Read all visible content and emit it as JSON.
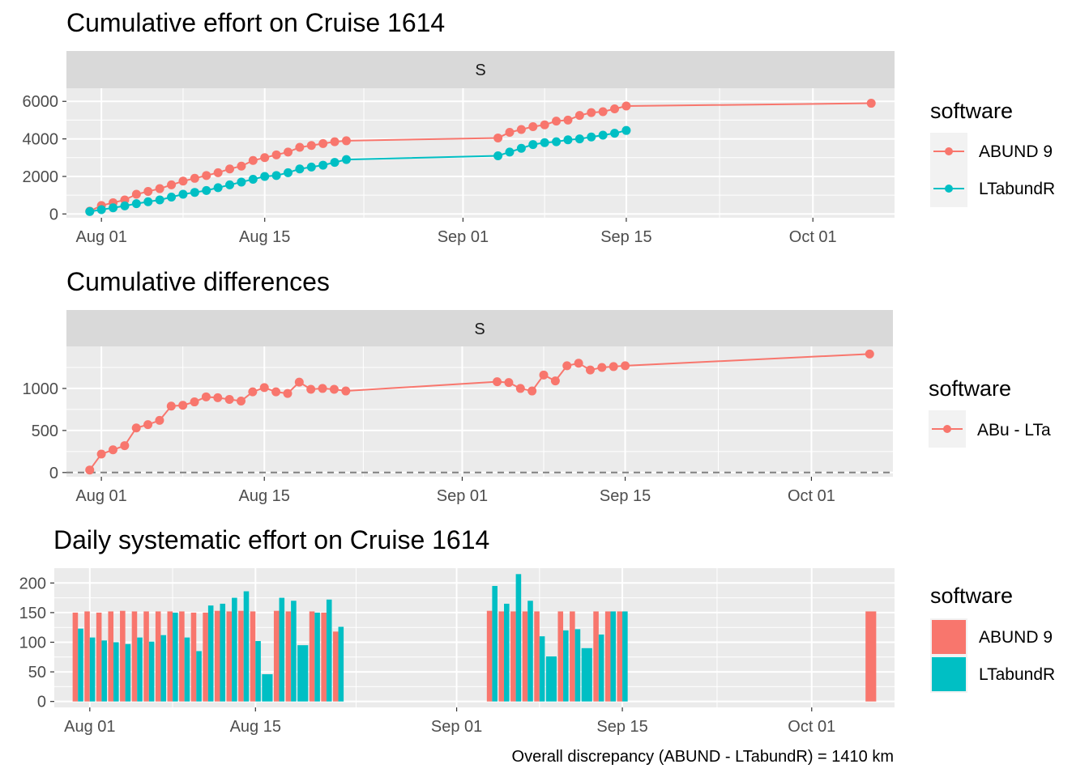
{
  "colors": {
    "abund": "#F8766D",
    "ltabund": "#00BFC4",
    "panel_bg": "#EBEBEB",
    "strip_bg": "#D9D9D9",
    "grid": "#FFFFFF",
    "refline": "#808080"
  },
  "x_date_labels": [
    "Aug 01",
    "Aug 15",
    "Sep 01",
    "Sep 15",
    "Oct 01"
  ],
  "caption": "Overall discrepancy (ABUND - LTabundR) = 1410 km",
  "chart_data": [
    {
      "type": "line",
      "title": "Cumulative effort on Cruise 1614",
      "facet": "S",
      "xlabel": "",
      "ylabel": "",
      "xlim": [
        "2016-07-29",
        "2016-10-08"
      ],
      "ylim": [
        -200,
        6700
      ],
      "y_ticks": [
        0,
        2000,
        4000,
        6000
      ],
      "grid": true,
      "legend": {
        "title": "software",
        "position": "right",
        "entries": [
          "ABUND 9",
          "LTabundR"
        ]
      },
      "x": [
        "2016-07-31",
        "2016-08-01",
        "2016-08-02",
        "2016-08-03",
        "2016-08-04",
        "2016-08-05",
        "2016-08-06",
        "2016-08-07",
        "2016-08-08",
        "2016-08-09",
        "2016-08-10",
        "2016-08-11",
        "2016-08-12",
        "2016-08-13",
        "2016-08-14",
        "2016-08-15",
        "2016-08-16",
        "2016-08-17",
        "2016-08-18",
        "2016-08-19",
        "2016-08-20",
        "2016-08-21",
        "2016-08-22",
        "2016-09-04",
        "2016-09-05",
        "2016-09-06",
        "2016-09-07",
        "2016-09-08",
        "2016-09-09",
        "2016-09-10",
        "2016-09-11",
        "2016-09-12",
        "2016-09-13",
        "2016-09-14",
        "2016-09-15",
        "2016-10-06"
      ],
      "series": [
        {
          "name": "ABUND 9",
          "values": [
            150,
            450,
            600,
            750,
            1050,
            1200,
            1350,
            1550,
            1750,
            1900,
            2050,
            2200,
            2400,
            2550,
            2850,
            3000,
            3150,
            3300,
            3550,
            3650,
            3750,
            3850,
            3900,
            4050,
            4350,
            4500,
            4650,
            4750,
            4950,
            5000,
            5250,
            5400,
            5450,
            5600,
            5750,
            5900
          ]
        },
        {
          "name": "LTabundR",
          "values": [
            130,
            230,
            330,
            430,
            550,
            650,
            750,
            900,
            1050,
            1150,
            1250,
            1400,
            1550,
            1700,
            1850,
            2000,
            2050,
            2200,
            2400,
            2500,
            2600,
            2750,
            2900,
            3100,
            3300,
            3500,
            3700,
            3800,
            3850,
            3950,
            4000,
            4100,
            4200,
            4300,
            4450,
            null
          ]
        }
      ]
    },
    {
      "type": "line",
      "title": "Cumulative differences",
      "facet": "S",
      "xlabel": "",
      "ylabel": "",
      "xlim": [
        "2016-07-29",
        "2016-10-08"
      ],
      "ylim": [
        -50,
        1500
      ],
      "y_ticks": [
        0,
        500,
        1000
      ],
      "reference_line": {
        "y": 0,
        "style": "dashed"
      },
      "grid": true,
      "legend": {
        "title": "software",
        "position": "right",
        "entries": [
          "ABu - LTa"
        ]
      },
      "x": [
        "2016-07-31",
        "2016-08-01",
        "2016-08-02",
        "2016-08-03",
        "2016-08-04",
        "2016-08-05",
        "2016-08-06",
        "2016-08-07",
        "2016-08-08",
        "2016-08-09",
        "2016-08-10",
        "2016-08-11",
        "2016-08-12",
        "2016-08-13",
        "2016-08-14",
        "2016-08-15",
        "2016-08-16",
        "2016-08-17",
        "2016-08-18",
        "2016-08-19",
        "2016-08-20",
        "2016-08-21",
        "2016-08-22",
        "2016-09-04",
        "2016-09-05",
        "2016-09-06",
        "2016-09-07",
        "2016-09-08",
        "2016-09-09",
        "2016-09-10",
        "2016-09-11",
        "2016-09-12",
        "2016-09-13",
        "2016-09-14",
        "2016-09-15",
        "2016-10-06"
      ],
      "series": [
        {
          "name": "ABu - LTa",
          "values": [
            30,
            220,
            270,
            320,
            530,
            570,
            620,
            790,
            800,
            840,
            900,
            890,
            870,
            850,
            960,
            1010,
            960,
            940,
            1075,
            990,
            1000,
            990,
            970,
            1080,
            1070,
            1000,
            970,
            1160,
            1090,
            1270,
            1300,
            1220,
            1250,
            1260,
            1270,
            1410
          ]
        }
      ]
    },
    {
      "type": "bar",
      "title": "Daily systematic effort on Cruise 1614",
      "xlabel": "",
      "ylabel": "",
      "xlim": [
        "2016-07-29",
        "2016-10-08"
      ],
      "ylim": [
        -10,
        225
      ],
      "y_ticks": [
        0,
        50,
        100,
        150,
        200
      ],
      "position": "dodge",
      "grid": true,
      "legend": {
        "title": "software",
        "position": "right",
        "entries": [
          "ABUND 9",
          "LTabundR"
        ]
      },
      "x": [
        "2016-07-31",
        "2016-08-01",
        "2016-08-02",
        "2016-08-03",
        "2016-08-04",
        "2016-08-05",
        "2016-08-06",
        "2016-08-07",
        "2016-08-08",
        "2016-08-09",
        "2016-08-10",
        "2016-08-11",
        "2016-08-12",
        "2016-08-13",
        "2016-08-14",
        "2016-08-15",
        "2016-08-16",
        "2016-08-17",
        "2016-08-18",
        "2016-08-19",
        "2016-08-20",
        "2016-08-21",
        "2016-08-22",
        "2016-09-04",
        "2016-09-05",
        "2016-09-06",
        "2016-09-07",
        "2016-09-08",
        "2016-09-09",
        "2016-09-10",
        "2016-09-11",
        "2016-09-12",
        "2016-09-13",
        "2016-09-14",
        "2016-09-15",
        "2016-10-06"
      ],
      "series": [
        {
          "name": "ABUND 9",
          "values": [
            150,
            152,
            150,
            152,
            153,
            152,
            152,
            152,
            152,
            152,
            150,
            150,
            153,
            152,
            153,
            152,
            null,
            153,
            152,
            null,
            152,
            150,
            118,
            153,
            152,
            152,
            152,
            152,
            null,
            152,
            152,
            null,
            152,
            152,
            152,
            152
          ]
        },
        {
          "name": "LTabundR",
          "values": [
            123,
            108,
            103,
            100,
            97,
            108,
            101,
            112,
            150,
            108,
            85,
            162,
            165,
            175,
            186,
            102,
            46,
            175,
            170,
            95,
            150,
            172,
            126,
            195,
            165,
            215,
            170,
            110,
            76,
            120,
            122,
            90,
            113,
            152,
            152,
            null
          ]
        }
      ]
    }
  ]
}
